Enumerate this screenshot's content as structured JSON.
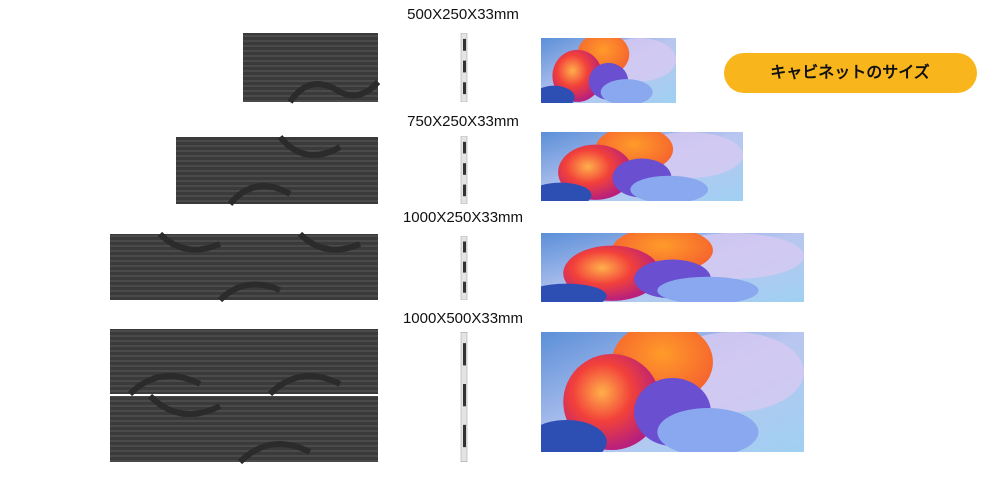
{
  "sizes": [
    {
      "label": "500X250X33mm"
    },
    {
      "label": "750X250X33mm"
    },
    {
      "label": "1000X250X33mm"
    },
    {
      "label": "1000X500X33mm"
    }
  ],
  "badge": {
    "label": "キャビネットのサイズ"
  }
}
